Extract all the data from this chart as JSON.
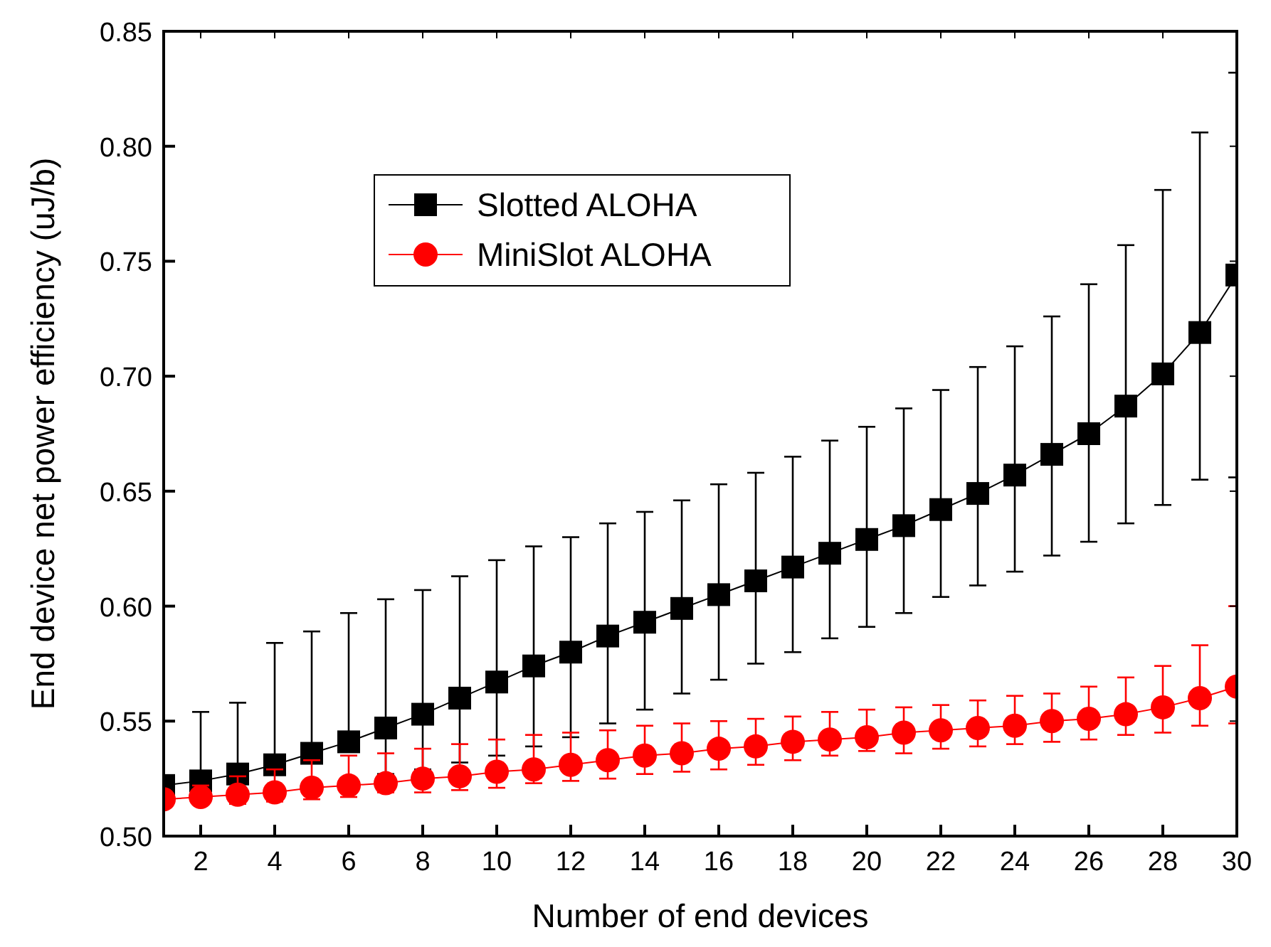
{
  "chart_data": {
    "type": "line",
    "xlabel": "Number of end devices",
    "ylabel": "End device net power efficiency (uJ/b)",
    "x": [
      1,
      2,
      3,
      4,
      5,
      6,
      7,
      8,
      9,
      10,
      11,
      12,
      13,
      14,
      15,
      16,
      17,
      18,
      19,
      20,
      21,
      22,
      23,
      24,
      25,
      26,
      27,
      28,
      29,
      30
    ],
    "xlim": [
      1,
      30
    ],
    "xticks": [
      2,
      4,
      6,
      8,
      10,
      12,
      14,
      16,
      18,
      20,
      22,
      24,
      26,
      28,
      30
    ],
    "ylim": [
      0.5,
      0.85
    ],
    "yticks": [
      {
        "value": 0.5,
        "label": "0.50"
      },
      0.55,
      {
        "value": 0.6,
        "label": "0.60"
      },
      0.65,
      {
        "value": 0.7,
        "label": "0.70"
      },
      0.75,
      {
        "value": 0.8,
        "label": "0.80"
      },
      0.85
    ],
    "legend": "top left",
    "grid": false,
    "line_style": "solid",
    "series": [
      {
        "name": "Slotted ALOHA",
        "color": "#000000",
        "marker": "square",
        "values": [
          0.522,
          0.524,
          0.527,
          0.531,
          0.536,
          0.541,
          0.547,
          0.553,
          0.56,
          0.567,
          0.574,
          0.58,
          0.587,
          0.593,
          0.599,
          0.605,
          0.611,
          0.617,
          0.623,
          0.629,
          0.635,
          0.642,
          0.649,
          0.657,
          0.666,
          0.675,
          0.687,
          0.701,
          0.719,
          0.744
        ],
        "errors": [
          null,
          [
            0.524,
            0.554
          ],
          [
            0.527,
            0.558
          ],
          [
            0.531,
            0.584
          ],
          [
            0.536,
            0.589
          ],
          [
            0.541,
            0.597
          ],
          [
            0.527,
            0.603
          ],
          [
            0.529,
            0.607
          ],
          [
            0.532,
            0.613
          ],
          [
            0.535,
            0.62
          ],
          [
            0.539,
            0.626
          ],
          [
            0.543,
            0.63
          ],
          [
            0.549,
            0.636
          ],
          [
            0.555,
            0.641
          ],
          [
            0.562,
            0.646
          ],
          [
            0.568,
            0.653
          ],
          [
            0.575,
            0.658
          ],
          [
            0.58,
            0.665
          ],
          [
            0.586,
            0.672
          ],
          [
            0.591,
            0.678
          ],
          [
            0.597,
            0.686
          ],
          [
            0.604,
            0.694
          ],
          [
            0.609,
            0.704
          ],
          [
            0.615,
            0.713
          ],
          [
            0.622,
            0.726
          ],
          [
            0.628,
            0.74
          ],
          [
            0.636,
            0.757
          ],
          [
            0.644,
            0.781
          ],
          [
            0.655,
            0.806
          ],
          [
            0.656,
            0.832
          ]
        ]
      },
      {
        "name": "MiniSlot ALOHA",
        "color": "#ff0000",
        "marker": "circle",
        "values": [
          0.516,
          0.517,
          0.518,
          0.519,
          0.521,
          0.522,
          0.523,
          0.525,
          0.526,
          0.528,
          0.529,
          0.531,
          0.533,
          0.535,
          0.536,
          0.538,
          0.539,
          0.541,
          0.542,
          0.543,
          0.545,
          0.546,
          0.547,
          0.548,
          0.55,
          0.551,
          0.553,
          0.556,
          0.56,
          0.565
        ],
        "errors": [
          null,
          [
            0.517,
            0.522
          ],
          [
            0.514,
            0.526
          ],
          [
            0.515,
            0.529
          ],
          [
            0.516,
            0.533
          ],
          [
            0.517,
            0.535
          ],
          [
            0.519,
            0.536
          ],
          [
            0.519,
            0.538
          ],
          [
            0.52,
            0.54
          ],
          [
            0.521,
            0.542
          ],
          [
            0.523,
            0.544
          ],
          [
            0.524,
            0.545
          ],
          [
            0.525,
            0.546
          ],
          [
            0.527,
            0.548
          ],
          [
            0.528,
            0.549
          ],
          [
            0.529,
            0.55
          ],
          [
            0.531,
            0.551
          ],
          [
            0.533,
            0.552
          ],
          [
            0.535,
            0.554
          ],
          [
            0.537,
            0.555
          ],
          [
            0.536,
            0.556
          ],
          [
            0.538,
            0.557
          ],
          [
            0.539,
            0.559
          ],
          [
            0.54,
            0.561
          ],
          [
            0.541,
            0.562
          ],
          [
            0.542,
            0.565
          ],
          [
            0.544,
            0.569
          ],
          [
            0.545,
            0.574
          ],
          [
            0.548,
            0.583
          ],
          [
            0.549,
            0.6
          ]
        ]
      }
    ]
  }
}
